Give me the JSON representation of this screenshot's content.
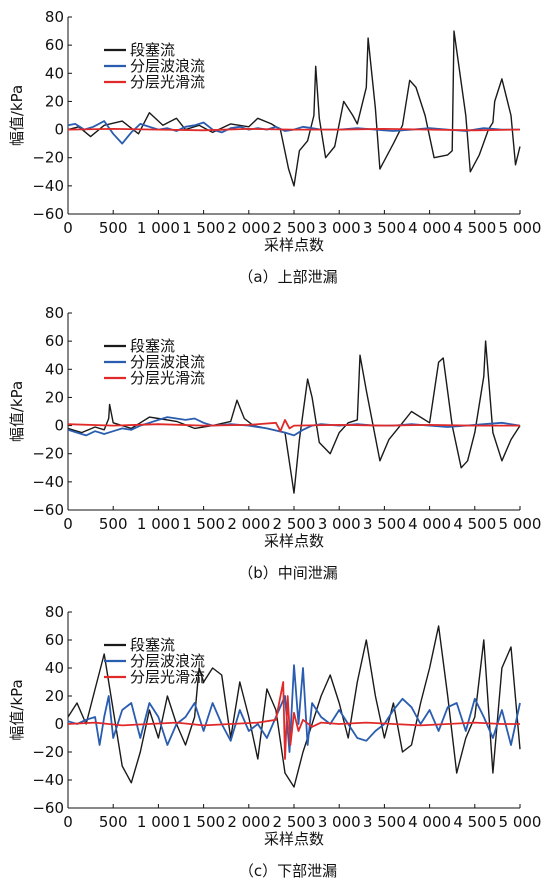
{
  "chart_data": [
    {
      "type": "line",
      "caption": "（a）上部泄漏",
      "xlabel": "采样点数",
      "ylabel": "幅值/kPa",
      "xlim": [
        0,
        5000
      ],
      "ylim": [
        -60,
        80
      ],
      "xticks": [
        0,
        500,
        1000,
        1500,
        2000,
        2500,
        3000,
        3500,
        4000,
        4500,
        5000
      ],
      "xtick_labels": [
        "0",
        "500",
        "1 000",
        "1 500",
        "2 000",
        "2 500",
        "3 000",
        "3 500",
        "4 000",
        "4 500",
        "5 000"
      ],
      "yticks": [
        -60,
        -40,
        -20,
        0,
        20,
        40,
        60,
        80
      ],
      "ytick_labels": [
        "−60",
        "−40",
        "−20",
        "0",
        "20",
        "40",
        "60",
        "80"
      ],
      "legend_position": "top-left",
      "series": [
        {
          "name": "段塞流",
          "color": "#1a1a1a",
          "x": [
            0,
            120,
            250,
            400,
            600,
            780,
            900,
            1050,
            1200,
            1300,
            1450,
            1600,
            1800,
            2000,
            2100,
            2250,
            2350,
            2440,
            2500,
            2560,
            2650,
            2720,
            2740,
            2780,
            2850,
            2950,
            3050,
            3150,
            3200,
            3300,
            3320,
            3400,
            3450,
            3600,
            3700,
            3780,
            3850,
            3950,
            4050,
            4200,
            4250,
            4270,
            4400,
            4450,
            4550,
            4650,
            4700,
            4720,
            4800,
            4900,
            4950,
            5000
          ],
          "y": [
            0,
            2,
            -5,
            3,
            6,
            -3,
            12,
            3,
            8,
            0,
            3,
            -2,
            4,
            2,
            8,
            4,
            0,
            -28,
            -40,
            -15,
            -8,
            10,
            45,
            8,
            -20,
            -12,
            20,
            10,
            4,
            30,
            65,
            15,
            -28,
            -10,
            3,
            35,
            30,
            10,
            -20,
            -18,
            -15,
            70,
            10,
            -30,
            -18,
            0,
            5,
            20,
            36,
            10,
            -25,
            -12
          ]
        },
        {
          "name": "分层波浪流",
          "color": "#2a5db0",
          "x": [
            0,
            80,
            180,
            280,
            400,
            500,
            600,
            700,
            800,
            900,
            1000,
            1100,
            1200,
            1300,
            1400,
            1500,
            1600,
            1700,
            1800,
            1900,
            2000,
            2100,
            2200,
            2300,
            2400,
            2500,
            2600,
            2700,
            2800,
            2900,
            3000,
            3200,
            3400,
            3600,
            3800,
            4000,
            4200,
            4400,
            4600,
            4800,
            5000
          ],
          "y": [
            3,
            4,
            0,
            2,
            6,
            -3,
            -10,
            -2,
            4,
            2,
            0,
            1,
            -1,
            2,
            3,
            5,
            0,
            -2,
            1,
            2,
            0,
            1,
            0,
            2,
            -1,
            0,
            2,
            1,
            0,
            0,
            0,
            1,
            0,
            -1,
            0,
            1,
            0,
            -1,
            1,
            0,
            0
          ]
        },
        {
          "name": "分层光滑流",
          "color": "#e02a2a",
          "x": [
            0,
            500,
            1000,
            1500,
            2000,
            2500,
            3000,
            3500,
            4000,
            4500,
            5000
          ],
          "y": [
            0,
            0.5,
            0,
            -0.5,
            0.5,
            0,
            0,
            0.5,
            0,
            -0.5,
            0
          ]
        }
      ]
    },
    {
      "type": "line",
      "caption": "（b）中间泄漏",
      "xlabel": "采样点数",
      "ylabel": "幅值/kPa",
      "xlim": [
        0,
        5000
      ],
      "ylim": [
        -60,
        80
      ],
      "xticks": [
        0,
        500,
        1000,
        1500,
        2000,
        2500,
        3000,
        3500,
        4000,
        4500,
        5000
      ],
      "xtick_labels": [
        "0",
        "500",
        "1 000",
        "1 500",
        "2 000",
        "2 500",
        "3 000",
        "3 500",
        "4 000",
        "4 500",
        "5 000"
      ],
      "yticks": [
        -60,
        -40,
        -20,
        0,
        20,
        40,
        60,
        80
      ],
      "ytick_labels": [
        "−60",
        "−40",
        "−20",
        "0",
        "20",
        "40",
        "60",
        "80"
      ],
      "legend_position": "top-left",
      "series": [
        {
          "name": "段塞流",
          "color": "#1a1a1a",
          "x": [
            0,
            150,
            300,
            400,
            450,
            460,
            500,
            600,
            700,
            800,
            900,
            1000,
            1200,
            1400,
            1600,
            1800,
            1870,
            1950,
            2050,
            2200,
            2400,
            2470,
            2500,
            2560,
            2650,
            2700,
            2780,
            2900,
            3000,
            3100,
            3200,
            3230,
            3300,
            3450,
            3550,
            3700,
            3800,
            4000,
            4100,
            4150,
            4250,
            4350,
            4420,
            4500,
            4600,
            4620,
            4700,
            4800,
            4900,
            5000
          ],
          "y": [
            -2,
            -5,
            -1,
            -3,
            5,
            15,
            2,
            0,
            -2,
            2,
            6,
            5,
            3,
            -2,
            0,
            3,
            18,
            5,
            0,
            -2,
            -5,
            -35,
            -48,
            -10,
            33,
            20,
            -12,
            -20,
            -5,
            2,
            4,
            50,
            25,
            -25,
            -10,
            2,
            10,
            2,
            45,
            48,
            0,
            -30,
            -25,
            -5,
            35,
            60,
            -5,
            -25,
            -10,
            0
          ]
        },
        {
          "name": "分层波浪流",
          "color": "#2a5db0",
          "x": [
            0,
            100,
            200,
            300,
            400,
            500,
            600,
            700,
            800,
            900,
            1000,
            1100,
            1200,
            1300,
            1400,
            1500,
            1600,
            1800,
            2000,
            2200,
            2400,
            2500,
            2600,
            2700,
            2800,
            3000,
            3200,
            3400,
            3600,
            3800,
            4000,
            4200,
            4400,
            4600,
            4800,
            5000
          ],
          "y": [
            -3,
            -5,
            -7,
            -4,
            -6,
            -4,
            -2,
            -3,
            0,
            2,
            4,
            6,
            5,
            4,
            5,
            2,
            0,
            1,
            0,
            -2,
            -5,
            -7,
            -3,
            0,
            1,
            0,
            1,
            0,
            0,
            1,
            0,
            -1,
            0,
            1,
            2,
            0
          ]
        },
        {
          "name": "分层光滑流",
          "color": "#e02a2a",
          "x": [
            0,
            500,
            1000,
            1500,
            2000,
            2300,
            2350,
            2400,
            2450,
            2500,
            3000,
            3500,
            4000,
            4500,
            5000
          ],
          "y": [
            1,
            0,
            1,
            0,
            0.5,
            2,
            -4,
            4,
            -2,
            0,
            0.5,
            0,
            0.5,
            0,
            0
          ]
        }
      ]
    },
    {
      "type": "line",
      "caption": "（c）下部泄漏",
      "xlabel": "采样点数",
      "ylabel": "幅值/kPa",
      "xlim": [
        0,
        5000
      ],
      "ylim": [
        -60,
        80
      ],
      "xticks": [
        0,
        500,
        1000,
        1500,
        2000,
        2500,
        3000,
        3500,
        4000,
        4500,
        5000
      ],
      "xtick_labels": [
        "0",
        "500",
        "1 000",
        "1 500",
        "2 000",
        "2 500",
        "3 000",
        "3 500",
        "4 000",
        "4 500",
        "5 000"
      ],
      "yticks": [
        -60,
        -40,
        -20,
        0,
        20,
        40,
        60,
        80
      ],
      "ytick_labels": [
        "−60",
        "−40",
        "−20",
        "0",
        "20",
        "40",
        "60",
        "80"
      ],
      "legend_position": "top-left",
      "series": [
        {
          "name": "段塞流",
          "color": "#1a1a1a",
          "x": [
            0,
            100,
            200,
            300,
            400,
            500,
            600,
            700,
            800,
            900,
            1000,
            1100,
            1200,
            1300,
            1400,
            1450,
            1500,
            1600,
            1700,
            1800,
            1900,
            2000,
            2100,
            2200,
            2300,
            2400,
            2500,
            2600,
            2700,
            2800,
            2900,
            3000,
            3100,
            3200,
            3300,
            3400,
            3500,
            3600,
            3700,
            3800,
            3900,
            4000,
            4100,
            4200,
            4300,
            4400,
            4500,
            4600,
            4700,
            4800,
            4900,
            5000
          ],
          "y": [
            5,
            15,
            0,
            25,
            50,
            10,
            -30,
            -42,
            -20,
            10,
            -10,
            20,
            0,
            -15,
            5,
            40,
            30,
            40,
            35,
            -10,
            30,
            5,
            -25,
            25,
            10,
            -35,
            -45,
            -20,
            0,
            20,
            35,
            15,
            -10,
            30,
            60,
            20,
            -10,
            15,
            -20,
            -15,
            15,
            40,
            70,
            20,
            -35,
            -10,
            5,
            60,
            -35,
            40,
            55,
            -18
          ]
        },
        {
          "name": "分层波浪流",
          "color": "#2a5db0",
          "x": [
            0,
            100,
            200,
            300,
            350,
            400,
            450,
            500,
            600,
            700,
            800,
            900,
            1000,
            1100,
            1200,
            1300,
            1400,
            1500,
            1600,
            1700,
            1800,
            1900,
            2000,
            2100,
            2200,
            2300,
            2400,
            2450,
            2500,
            2550,
            2600,
            2650,
            2700,
            2800,
            2900,
            3000,
            3100,
            3200,
            3300,
            3400,
            3500,
            3600,
            3700,
            3800,
            3900,
            4000,
            4100,
            4200,
            4300,
            4400,
            4500,
            4600,
            4700,
            4800,
            4900,
            5000
          ],
          "y": [
            2,
            0,
            3,
            5,
            -15,
            5,
            20,
            -10,
            10,
            15,
            -10,
            15,
            5,
            -15,
            0,
            5,
            15,
            -5,
            15,
            0,
            -12,
            10,
            -5,
            0,
            -10,
            5,
            20,
            -20,
            42,
            0,
            40,
            -15,
            15,
            5,
            0,
            10,
            0,
            -10,
            -12,
            -5,
            0,
            10,
            18,
            12,
            0,
            10,
            -5,
            12,
            15,
            -5,
            18,
            5,
            -10,
            10,
            -15,
            15
          ]
        },
        {
          "name": "分层光滑流",
          "color": "#e02a2a",
          "x": [
            0,
            300,
            600,
            900,
            1200,
            1500,
            1800,
            2100,
            2300,
            2380,
            2400,
            2430,
            2460,
            2500,
            2550,
            2600,
            2700,
            2800,
            3000,
            3300,
            3600,
            3900,
            4200,
            4500,
            4800,
            5000
          ],
          "y": [
            0,
            1,
            -1,
            0,
            1,
            -1,
            0,
            1,
            3,
            30,
            -25,
            20,
            -15,
            8,
            -5,
            3,
            -2,
            1,
            0,
            1,
            0,
            -1,
            0,
            1,
            0,
            0
          ]
        }
      ]
    }
  ]
}
